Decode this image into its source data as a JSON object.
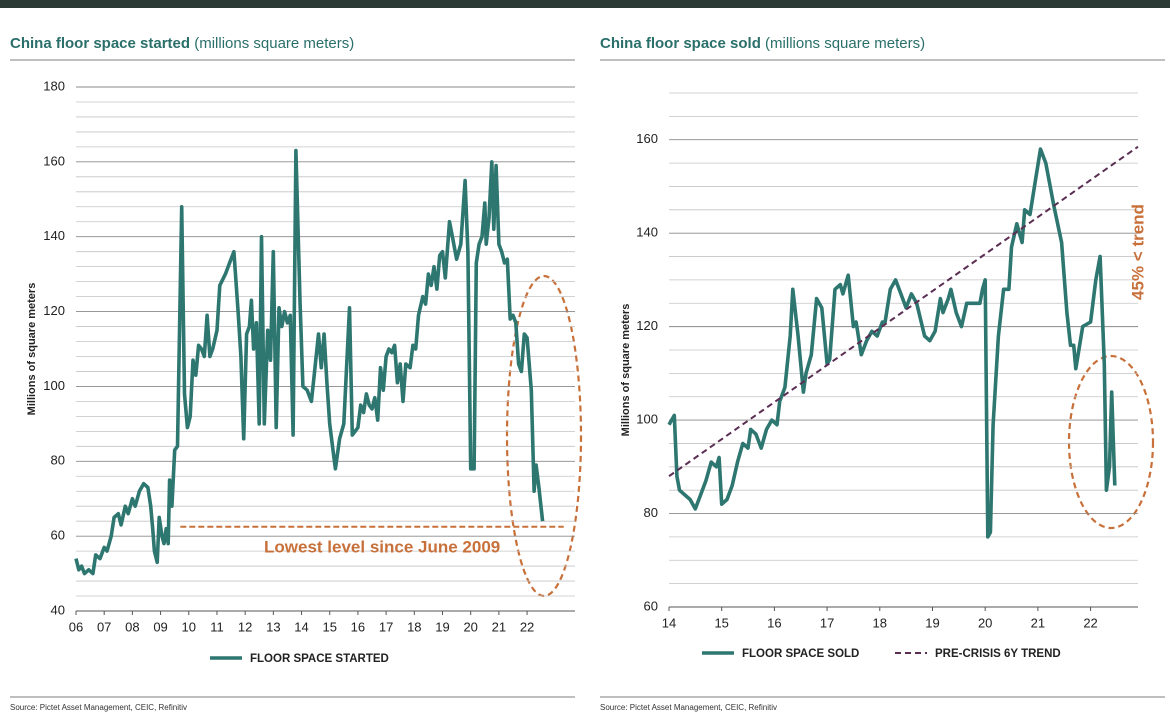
{
  "chart_data": [
    {
      "type": "line",
      "title": "China floor space started",
      "subtitle": "(millions square meters)",
      "y_label": "Millions of square meters",
      "source": "Source: Pictet Asset Management, CEIC, Refinitiv",
      "xlim": [
        2006,
        2023.7
      ],
      "xticks": [
        {
          "value": 2006,
          "label": "06"
        },
        {
          "value": 2007,
          "label": "07"
        },
        {
          "value": 2008,
          "label": "08"
        },
        {
          "value": 2009,
          "label": "09"
        },
        {
          "value": 2010,
          "label": "10"
        },
        {
          "value": 2011,
          "label": "11"
        },
        {
          "value": 2012,
          "label": "12"
        },
        {
          "value": 2013,
          "label": "13"
        },
        {
          "value": 2014,
          "label": "14"
        },
        {
          "value": 2015,
          "label": "15"
        },
        {
          "value": 2016,
          "label": "16"
        },
        {
          "value": 2017,
          "label": "17"
        },
        {
          "value": 2018,
          "label": "18"
        },
        {
          "value": 2019,
          "label": "19"
        },
        {
          "value": 2020,
          "label": "20"
        },
        {
          "value": 2021,
          "label": "21"
        },
        {
          "value": 2022,
          "label": "22"
        }
      ],
      "ylim": [
        40,
        180
      ],
      "yticks": [
        40,
        60,
        80,
        100,
        120,
        140,
        160,
        180
      ],
      "minor_yticks": [
        44,
        48,
        52,
        56,
        64,
        68,
        72,
        76,
        84,
        88,
        92,
        96,
        104,
        108,
        112,
        116,
        124,
        128,
        132,
        136,
        144,
        148,
        152,
        156,
        164,
        168,
        172,
        176
      ],
      "grid": true,
      "series": [
        {
          "name": "FLOOR SPACE STARTED",
          "color": "#2e7670",
          "x": [
            2006.0,
            2006.1,
            2006.2,
            2006.3,
            2006.45,
            2006.6,
            2006.7,
            2006.85,
            2007.0,
            2007.1,
            2007.25,
            2007.35,
            2007.5,
            2007.6,
            2007.75,
            2007.85,
            2008.0,
            2008.1,
            2008.25,
            2008.4,
            2008.55,
            2008.65,
            2008.72,
            2008.78,
            2008.88,
            2008.95,
            2009.05,
            2009.12,
            2009.2,
            2009.27,
            2009.32,
            2009.4,
            2009.5,
            2009.6,
            2009.75,
            2009.85,
            2009.95,
            2010.05,
            2010.15,
            2010.25,
            2010.35,
            2010.45,
            2010.55,
            2010.65,
            2010.75,
            2010.85,
            2011.0,
            2011.1,
            2011.3,
            2011.45,
            2011.6,
            2011.75,
            2011.85,
            2011.95,
            2012.05,
            2012.15,
            2012.22,
            2012.3,
            2012.4,
            2012.5,
            2012.58,
            2012.68,
            2012.8,
            2012.9,
            2013.0,
            2013.1,
            2013.2,
            2013.3,
            2013.4,
            2013.5,
            2013.6,
            2013.7,
            2013.8,
            2013.95,
            2014.05,
            2014.2,
            2014.35,
            2014.45,
            2014.6,
            2014.7,
            2014.8,
            2014.9,
            2015.0,
            2015.1,
            2015.2,
            2015.35,
            2015.5,
            2015.7,
            2015.8,
            2015.9,
            2016.0,
            2016.1,
            2016.2,
            2016.3,
            2016.4,
            2016.5,
            2016.6,
            2016.7,
            2016.8,
            2016.9,
            2017.0,
            2017.1,
            2017.2,
            2017.3,
            2017.4,
            2017.5,
            2017.6,
            2017.7,
            2017.85,
            2017.95,
            2018.05,
            2018.15,
            2018.3,
            2018.4,
            2018.5,
            2018.6,
            2018.7,
            2018.8,
            2018.9,
            2019.0,
            2019.1,
            2019.25,
            2019.35,
            2019.5,
            2019.65,
            2019.8,
            2019.9,
            2020.0,
            2020.12,
            2020.2,
            2020.3,
            2020.4,
            2020.5,
            2020.55,
            2020.65,
            2020.75,
            2020.82,
            2020.9,
            2021.0,
            2021.1,
            2021.2,
            2021.3,
            2021.4,
            2021.5,
            2021.6,
            2021.7,
            2021.8,
            2021.9,
            2022.0,
            2022.15,
            2022.25,
            2022.32,
            2022.42,
            2022.55
          ],
          "values": [
            54,
            51,
            52,
            50,
            51,
            50,
            55,
            54,
            57,
            56,
            60,
            65,
            66,
            63,
            68,
            66,
            70,
            68,
            72,
            74,
            73,
            68,
            62,
            56,
            53,
            65,
            60,
            58,
            62,
            58,
            75,
            68,
            83,
            84,
            148,
            98,
            89,
            92,
            107,
            103,
            111,
            110,
            108,
            119,
            108,
            110,
            115,
            127,
            130,
            133,
            136,
            120,
            108,
            86,
            114,
            116,
            123,
            110,
            117,
            90,
            140,
            90,
            115,
            107,
            136,
            89,
            121,
            116,
            120,
            117,
            119,
            87,
            163,
            122,
            100,
            99,
            96,
            103,
            114,
            105,
            114,
            101,
            90,
            84,
            78,
            86,
            90,
            121,
            87,
            88,
            89,
            95,
            93,
            98,
            95,
            94,
            97,
            91,
            105,
            99,
            108,
            110,
            109,
            111,
            101,
            106,
            96,
            106,
            105,
            111,
            110,
            119,
            124,
            122,
            130,
            127,
            132,
            126,
            135,
            136,
            129,
            144,
            140,
            134,
            138,
            155,
            136,
            78,
            78,
            133,
            138,
            140,
            149,
            138,
            145,
            160,
            142,
            159,
            138,
            136,
            133,
            134,
            118,
            119,
            117,
            106,
            104,
            114,
            113,
            99,
            72,
            79,
            73,
            64
          ]
        }
      ],
      "reference_line": {
        "value": 62.5,
        "x": [
          2009.7,
          2023.3
        ],
        "color": "#c8703a"
      },
      "annotations": [
        {
          "text": "Lowest level since June 2009",
          "color": "#c8703a"
        }
      ]
    },
    {
      "type": "line",
      "title": "China floor space sold",
      "subtitle": "(millions square meters)",
      "y_label": "Millions of square meters",
      "source": "Source: Pictet Asset Management, CEIC, Refinitiv",
      "xlim": [
        2014,
        2022.9
      ],
      "xticks": [
        {
          "value": 2014,
          "label": "14"
        },
        {
          "value": 2015,
          "label": "15"
        },
        {
          "value": 2016,
          "label": "16"
        },
        {
          "value": 2017,
          "label": "17"
        },
        {
          "value": 2018,
          "label": "18"
        },
        {
          "value": 2019,
          "label": "19"
        },
        {
          "value": 2020,
          "label": "20"
        },
        {
          "value": 2021,
          "label": "21"
        },
        {
          "value": 2022,
          "label": "22"
        }
      ],
      "ylim": [
        60,
        170
      ],
      "yticks": [
        60,
        80,
        100,
        120,
        140,
        160
      ],
      "minor_yticks": [
        65,
        70,
        75,
        85,
        90,
        95,
        105,
        110,
        115,
        125,
        130,
        135,
        145,
        150,
        155,
        165,
        170
      ],
      "grid": true,
      "series": [
        {
          "name": "FLOOR SPACE SOLD",
          "color": "#2e7670",
          "x": [
            2014.0,
            2014.05,
            2014.1,
            2014.15,
            2014.2,
            2014.3,
            2014.4,
            2014.5,
            2014.6,
            2014.7,
            2014.8,
            2014.9,
            2014.95,
            2015.0,
            2015.1,
            2015.2,
            2015.3,
            2015.4,
            2015.5,
            2015.55,
            2015.65,
            2015.75,
            2015.85,
            2015.95,
            2016.05,
            2016.1,
            2016.2,
            2016.3,
            2016.35,
            2016.45,
            2016.55,
            2016.6,
            2016.7,
            2016.8,
            2016.9,
            2017.0,
            2017.05,
            2017.15,
            2017.25,
            2017.3,
            2017.4,
            2017.5,
            2017.55,
            2017.65,
            2017.75,
            2017.85,
            2017.95,
            2018.05,
            2018.1,
            2018.2,
            2018.3,
            2018.4,
            2018.5,
            2018.6,
            2018.7,
            2018.85,
            2018.95,
            2019.05,
            2019.15,
            2019.2,
            2019.3,
            2019.35,
            2019.45,
            2019.55,
            2019.65,
            2019.8,
            2019.9,
            2019.95,
            2020.0,
            2020.05,
            2020.1,
            2020.15,
            2020.25,
            2020.35,
            2020.45,
            2020.5,
            2020.6,
            2020.7,
            2020.75,
            2020.85,
            2020.95,
            2021.05,
            2021.15,
            2021.3,
            2021.45,
            2021.55,
            2021.62,
            2021.68,
            2021.72,
            2021.85,
            2022.0,
            2022.1,
            2022.18,
            2022.26,
            2022.3,
            2022.36,
            2022.4,
            2022.46
          ],
          "values": [
            99,
            100,
            101,
            88,
            85,
            84,
            83,
            81,
            84,
            87,
            91,
            90,
            92,
            82,
            83,
            86,
            91,
            95,
            94,
            98,
            97,
            94,
            98,
            100,
            99,
            104,
            107,
            118,
            128,
            118,
            106,
            110,
            114,
            126,
            124,
            112,
            113,
            128,
            129,
            127,
            131,
            120,
            121,
            114,
            117,
            119,
            118,
            121,
            121,
            128,
            130,
            127,
            124,
            127,
            125,
            118,
            117,
            119,
            126,
            123,
            126,
            128,
            123,
            120,
            125,
            125,
            125,
            128,
            130,
            75,
            76,
            99,
            118,
            128,
            128,
            137,
            142,
            138,
            145,
            144,
            151,
            158,
            155,
            146,
            138,
            123,
            116,
            116,
            111,
            120,
            121,
            130,
            135,
            112,
            85,
            90,
            106,
            86
          ]
        },
        {
          "name": "PRE-CRISIS 6Y TREND",
          "color": "#5a2d52",
          "dashed": true,
          "x": [
            2014,
            2022.9
          ],
          "values": [
            88,
            158.5
          ]
        }
      ],
      "annotations": [
        {
          "text": "45% < trend",
          "color": "#c8703a"
        }
      ]
    }
  ]
}
